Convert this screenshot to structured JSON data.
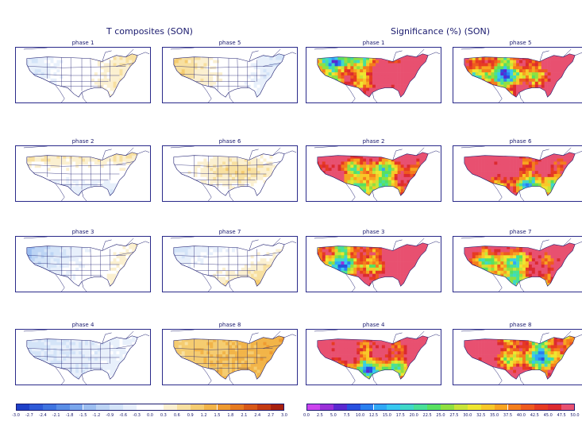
{
  "titles": {
    "left": "T composites (SON)",
    "right": "Significance (%) (SON)"
  },
  "temperature_panels": [
    {
      "label": "phase 1",
      "warm_east": true,
      "cool_west": true
    },
    {
      "label": "phase 5",
      "warm_west": true,
      "cool_east": true
    },
    {
      "label": "phase 2",
      "warm_north": true,
      "cool_south": true
    },
    {
      "label": "phase 6",
      "warm_center": true,
      "cool_coasts": true
    },
    {
      "label": "phase 3",
      "warm_east": true,
      "cool_northwest": true
    },
    {
      "label": "phase 7",
      "warm_southeast": true,
      "cool_northwest": true
    },
    {
      "label": "phase 4",
      "cool_all": true
    },
    {
      "label": "phase 8",
      "warm_all": true
    }
  ],
  "significance_panels": [
    {
      "label": "phase 1"
    },
    {
      "label": "phase 5"
    },
    {
      "label": "phase 2"
    },
    {
      "label": "phase 6"
    },
    {
      "label": "phase 3"
    },
    {
      "label": "phase 7"
    },
    {
      "label": "phase 4"
    },
    {
      "label": "phase 8"
    }
  ],
  "temp_colorbar": {
    "ticks": [
      "-3.0",
      "-2.7",
      "-2.4",
      "-2.1",
      "-1.8",
      "-1.5",
      "-1.2",
      "-0.9",
      "-0.6",
      "-0.3",
      "0.0",
      "0.3",
      "0.6",
      "0.9",
      "1.2",
      "1.5",
      "1.8",
      "2.1",
      "2.4",
      "2.7",
      "3.0"
    ],
    "colors": [
      "#1e40c8",
      "#2e5ad8",
      "#3f74e0",
      "#5a8ee6",
      "#7aa6ec",
      "#9cbef0",
      "#bcd4f4",
      "#d4e4f8",
      "#e8f0fb",
      "#ffffff",
      "#ffffff",
      "#fbf0d0",
      "#f8e0a0",
      "#f5cc70",
      "#f2b448",
      "#ee9a30",
      "#e67a20",
      "#d85818",
      "#c43a12",
      "#a8200e"
    ]
  },
  "sig_colorbar": {
    "ticks": [
      "0.0",
      "2.5",
      "5.0",
      "7.5",
      "10.0",
      "12.5",
      "15.0",
      "17.5",
      "20.0",
      "22.5",
      "25.0",
      "27.5",
      "30.0",
      "32.5",
      "35.0",
      "37.5",
      "40.0",
      "42.5",
      "45.0",
      "47.5",
      "50.0"
    ],
    "colors": [
      "#cc44ee",
      "#9b30d8",
      "#5a28d0",
      "#2850e0",
      "#2a80f0",
      "#30a8f5",
      "#38c8f0",
      "#40d8c8",
      "#48e098",
      "#58e060",
      "#90e040",
      "#c8e438",
      "#eee630",
      "#f8c828",
      "#f8a420",
      "#f47e1c",
      "#ee5a1e",
      "#e63a22",
      "#dc2a30",
      "#e85070"
    ]
  }
}
